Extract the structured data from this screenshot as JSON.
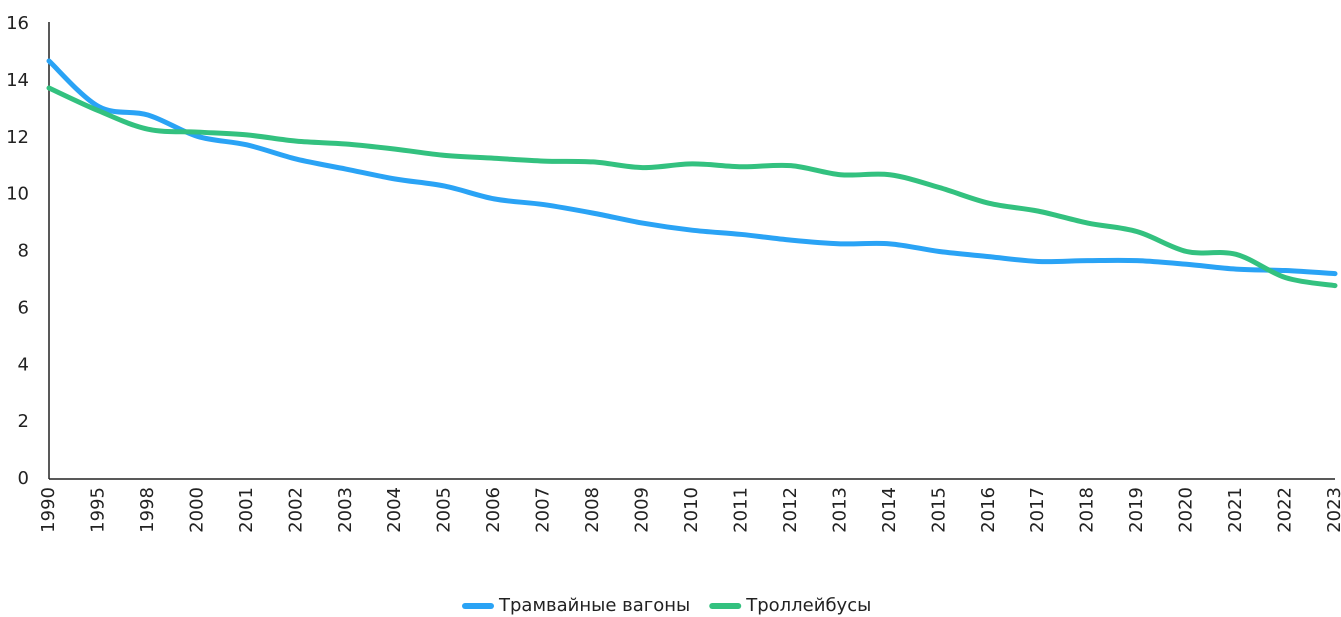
{
  "chart_data": {
    "type": "line",
    "categories": [
      "1990",
      "1995",
      "1998",
      "2000",
      "2001",
      "2002",
      "2003",
      "2004",
      "2005",
      "2006",
      "2007",
      "2008",
      "2009",
      "2010",
      "2011",
      "2012",
      "2013",
      "2014",
      "2015",
      "2016",
      "2017",
      "2018",
      "2019",
      "2020",
      "2021",
      "2022",
      "2023"
    ],
    "series": [
      {
        "name": "Трамвайные вагоны",
        "color": "#2aa3f5",
        "values": [
          14.7,
          13.1,
          12.8,
          12.05,
          11.75,
          11.25,
          10.9,
          10.55,
          10.3,
          9.85,
          9.65,
          9.35,
          9.0,
          8.75,
          8.6,
          8.4,
          8.27,
          8.27,
          8.0,
          7.82,
          7.65,
          7.68,
          7.68,
          7.55,
          7.38,
          7.33,
          7.22
        ]
      },
      {
        "name": "Троллейбусы",
        "color": "#33c17f",
        "values": [
          13.75,
          12.95,
          12.3,
          12.2,
          12.1,
          11.88,
          11.78,
          11.6,
          11.38,
          11.28,
          11.18,
          11.15,
          10.95,
          11.08,
          10.98,
          11.02,
          10.7,
          10.7,
          10.25,
          9.7,
          9.42,
          9.0,
          8.7,
          8.0,
          7.9,
          7.08,
          6.8
        ]
      }
    ],
    "ylim": [
      0,
      16
    ],
    "yticks": [
      0,
      2,
      4,
      6,
      8,
      10,
      12,
      14,
      16
    ],
    "grid": false
  }
}
